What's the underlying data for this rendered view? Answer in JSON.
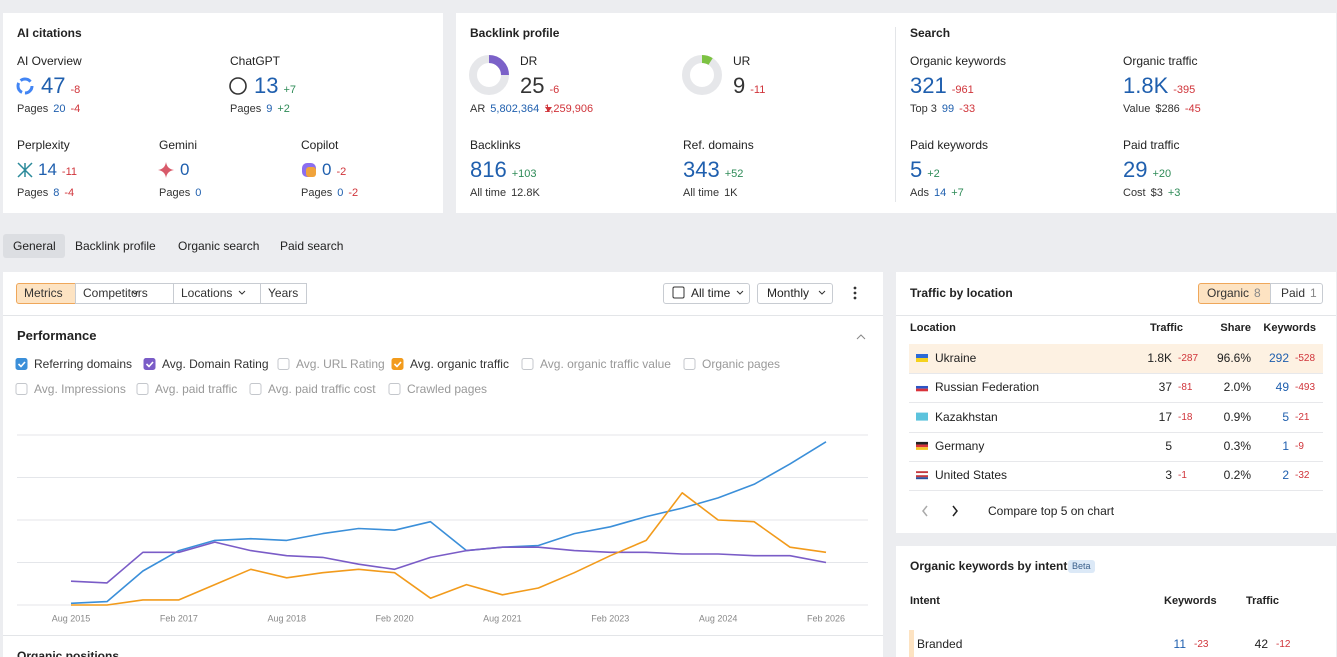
{
  "ai_citations": {
    "title": "AI citations",
    "items": [
      {
        "name": "AI Overview",
        "value": 47,
        "delta": "-8",
        "sub_label": "Pages",
        "sub_value": 20,
        "sub_delta": "-4"
      },
      {
        "name": "ChatGPT",
        "value": 13,
        "delta": "+7",
        "sub_label": "Pages",
        "sub_value": 9,
        "sub_delta": "+2"
      },
      {
        "name": "Perplexity",
        "value": 14,
        "delta": "-11",
        "sub_label": "Pages",
        "sub_value": 8,
        "sub_delta": "-4"
      },
      {
        "name": "Gemini",
        "value": 0,
        "sub_label": "Pages",
        "sub_value": 0
      },
      {
        "name": "Copilot",
        "value": 0,
        "delta": "-2",
        "sub_label": "Pages",
        "sub_value": 0,
        "sub_delta": "-2"
      }
    ]
  },
  "backlink_profile": {
    "title": "Backlink profile",
    "items": [
      {
        "name": "DR",
        "value": 25,
        "delta": "-6",
        "sub_label": "AR",
        "sub_value": "5,802,364",
        "sub_delta": "1,259,906"
      },
      {
        "name": "UR",
        "value": 9,
        "delta": "-11"
      },
      {
        "name": "Backlinks",
        "value": 816,
        "delta": "+103",
        "sub_label": "All time",
        "sub_value": "12.8K"
      },
      {
        "name": "Ref. domains",
        "value": 343,
        "delta": "+52",
        "sub_label": "All time",
        "sub_value": "1K"
      }
    ]
  },
  "search": {
    "title": "Search",
    "items": [
      {
        "name": "Organic keywords",
        "value": 321,
        "delta": "-961",
        "sub_label": "Top 3",
        "sub_value": 99,
        "sub_delta": "-33"
      },
      {
        "name": "Organic traffic",
        "value": "1.8K",
        "delta": "-395",
        "sub_label": "Value",
        "sub_value": "$286",
        "sub_delta": "-45"
      },
      {
        "name": "Paid keywords",
        "value": 5,
        "delta": "+2",
        "sub_label": "Ads",
        "sub_value": 14,
        "sub_delta": "+7"
      },
      {
        "name": "Paid traffic",
        "value": 29,
        "delta": "+20",
        "sub_label": "Cost",
        "sub_value": "$3",
        "sub_delta": "+3"
      }
    ]
  },
  "tabs": [
    "General",
    "Backlink profile",
    "Organic search",
    "Paid search"
  ],
  "toolbar": {
    "filters": [
      "Metrics",
      "Competitors",
      "Locations",
      "Years"
    ],
    "period": "All time",
    "interval": "Monthly"
  },
  "performance": {
    "title": "Performance",
    "options": [
      "Avg. URL Rating",
      "Avg. organic traffic value",
      "Organic pages",
      "Avg. Impressions",
      "Avg. paid traffic",
      "Avg. paid traffic cost",
      "Crawled pages"
    ]
  },
  "chart_data": {
    "type": "line",
    "categories": [
      "Aug 2015",
      null,
      null,
      "Feb 2017",
      null,
      null,
      "Aug 2018",
      null,
      null,
      "Feb 2020",
      null,
      null,
      "Aug 2021",
      null,
      null,
      "Feb 2023",
      null,
      null,
      "Aug 2024",
      null,
      null,
      "Feb 2026"
    ],
    "ylim": [
      0,
      100
    ],
    "grid": true,
    "series": [
      {
        "name": "Referring domains",
        "color": "#3b8fd9",
        "values": [
          1,
          2,
          20,
          32,
          38,
          39,
          38,
          42,
          45,
          44,
          49,
          32,
          34,
          35,
          42,
          46,
          52,
          57,
          63,
          71,
          83,
          96
        ]
      },
      {
        "name": "Avg. Domain Rating",
        "color": "#7a5cc7",
        "values": [
          14,
          13,
          31,
          31,
          37,
          32,
          29,
          28,
          24,
          21,
          28,
          32,
          34,
          34,
          32,
          31,
          31,
          30,
          30,
          29,
          29,
          25
        ]
      },
      {
        "name": "Avg. organic traffic",
        "color": "#f29b1c",
        "values": [
          0,
          0,
          3,
          3,
          12,
          21,
          16,
          19,
          21,
          19,
          4,
          12,
          6,
          10,
          19,
          29,
          38,
          66,
          50,
          49,
          34,
          31
        ]
      }
    ]
  },
  "organic_positions": {
    "title": "Organic positions"
  },
  "traffic_by_location": {
    "title": "Traffic by location",
    "toggle": [
      {
        "label": "Organic",
        "count": 8
      },
      {
        "label": "Paid",
        "count": 1
      }
    ],
    "headers": [
      "Location",
      "Traffic",
      "Share",
      "Keywords"
    ],
    "rows": [
      {
        "location": "Ukraine",
        "traffic": "1.8K",
        "traffic_delta": "-287",
        "share": "96.6%",
        "keywords": 292,
        "keywords_delta": "-528"
      },
      {
        "location": "Russian Federation",
        "traffic": 37,
        "traffic_delta": "-81",
        "share": "2.0%",
        "keywords": 49,
        "keywords_delta": "-493"
      },
      {
        "location": "Kazakhstan",
        "traffic": 17,
        "traffic_delta": "-18",
        "share": "0.9%",
        "keywords": 5,
        "keywords_delta": "-21"
      },
      {
        "location": "Germany",
        "traffic": 5,
        "share": "0.3%",
        "keywords": 1,
        "keywords_delta": "-9"
      },
      {
        "location": "United States",
        "traffic": 3,
        "traffic_delta": "-1",
        "share": "0.2%",
        "keywords": 2,
        "keywords_delta": "-32"
      }
    ],
    "compare": "Compare top 5 on chart"
  },
  "keywords_by_intent": {
    "title": "Organic keywords by intent",
    "badge": "Beta",
    "headers": [
      "Intent",
      "Keywords",
      "Traffic"
    ],
    "rows": [
      {
        "intent": "Branded",
        "keywords": 11,
        "keywords_delta": "-23",
        "traffic": 42,
        "traffic_delta": "-12"
      }
    ]
  }
}
